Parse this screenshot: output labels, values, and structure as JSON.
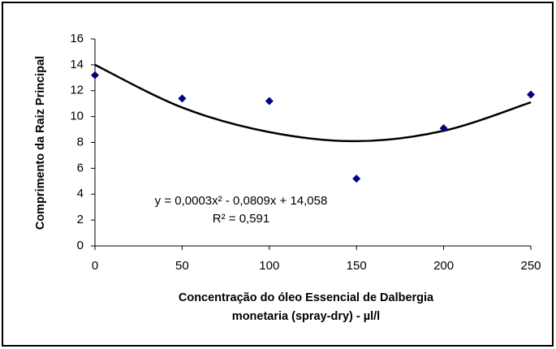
{
  "chart_data": {
    "type": "scatter",
    "x_label_lines": [
      "Concentração do óleo Essencial de Dalbergia",
      "monetaria (spray-dry)   - µl/l"
    ],
    "y_label": "Comprimento da Raiz Principal",
    "x": [
      0,
      50,
      100,
      150,
      200,
      250
    ],
    "values": [
      13.2,
      11.4,
      11.2,
      5.2,
      9.1,
      11.7
    ],
    "color": "#000080",
    "trendline": {
      "x": [
        0,
        50,
        100,
        150,
        200,
        250
      ],
      "y": [
        14.0,
        10.7,
        8.8,
        8.1,
        8.9,
        11.1
      ],
      "color": "#000000"
    },
    "annotations": [
      "y = 0,0003x² - 0,0809x + 14,058",
      "R² = 0,591"
    ],
    "xlim": [
      0,
      250
    ],
    "xticks": [
      0,
      50,
      100,
      150,
      200,
      250
    ],
    "ylim": [
      0,
      16
    ],
    "yticks": [
      0,
      2,
      4,
      6,
      8,
      10,
      12,
      14,
      16
    ],
    "grid": false
  }
}
